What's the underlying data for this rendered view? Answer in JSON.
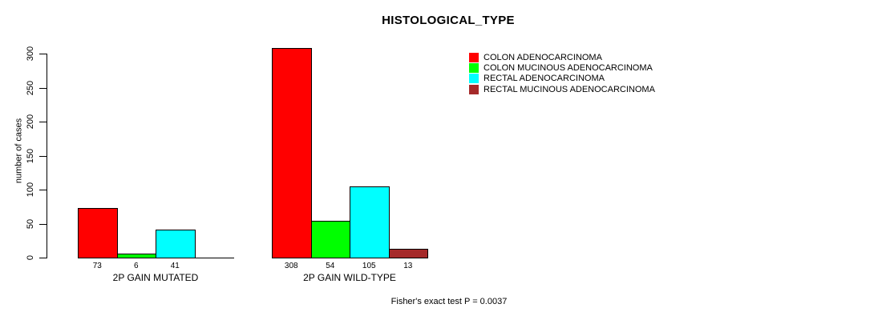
{
  "chart_data": {
    "type": "bar",
    "title": "HISTOLOGICAL_TYPE",
    "ylabel": "number of cases",
    "xlabel": "",
    "ylim": [
      0,
      300
    ],
    "yticks": [
      0,
      50,
      100,
      150,
      200,
      250,
      300
    ],
    "grid": false,
    "legend_position": "right",
    "bar_value_labels_shown": true,
    "categories": [
      "2P GAIN MUTATED",
      "2P GAIN WILD-TYPE"
    ],
    "series": [
      {
        "name": "COLON ADENOCARCINOMA",
        "color": "#ff0000",
        "values": [
          73,
          308
        ]
      },
      {
        "name": "COLON MUCINOUS ADENOCARCINOMA",
        "color": "#00ff00",
        "values": [
          6,
          54
        ]
      },
      {
        "name": "RECTAL ADENOCARCINOMA",
        "color": "#00ffff",
        "values": [
          41,
          105
        ]
      },
      {
        "name": "RECTAL MUCINOUS ADENOCARCINOMA",
        "color": "#a52a2a",
        "values": [
          0,
          13
        ]
      }
    ],
    "footnote": "Fisher's exact test P = 0.0037"
  }
}
